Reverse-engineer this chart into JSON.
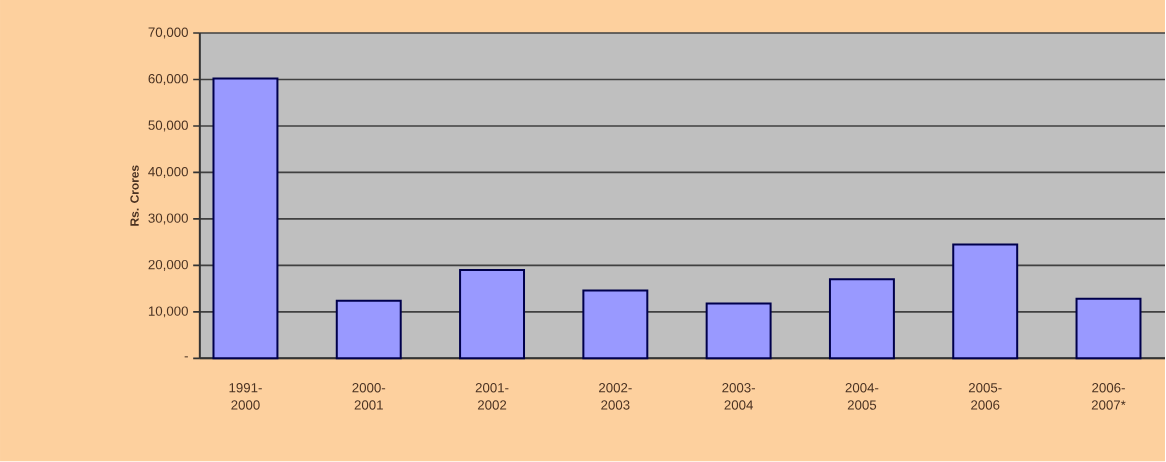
{
  "chart_data": {
    "type": "bar",
    "ylabel": "Rs. Crores",
    "categories": [
      "1991- 2000",
      "2000- 2001",
      "2001- 2002",
      "2002- 2003",
      "2003- 2004",
      "2004- 2005",
      "2005- 2006",
      "2006- 2007*"
    ],
    "values": [
      60200,
      12400,
      19000,
      14600,
      11800,
      17000,
      24500,
      12800
    ],
    "color": "#9999ff",
    "ylim": [
      0,
      70000
    ],
    "yticks": [
      {
        "value": 0,
        "label": "-"
      },
      {
        "value": 10000,
        "label": "10,000"
      },
      {
        "value": 20000,
        "label": "20,000"
      },
      {
        "value": 30000,
        "label": "30,000"
      },
      {
        "value": 40000,
        "label": "40,000"
      },
      {
        "value": 50000,
        "label": "50,000"
      },
      {
        "value": 60000,
        "label": "60,000"
      },
      {
        "value": 70000,
        "label": "70,000"
      }
    ],
    "grid": "y"
  }
}
